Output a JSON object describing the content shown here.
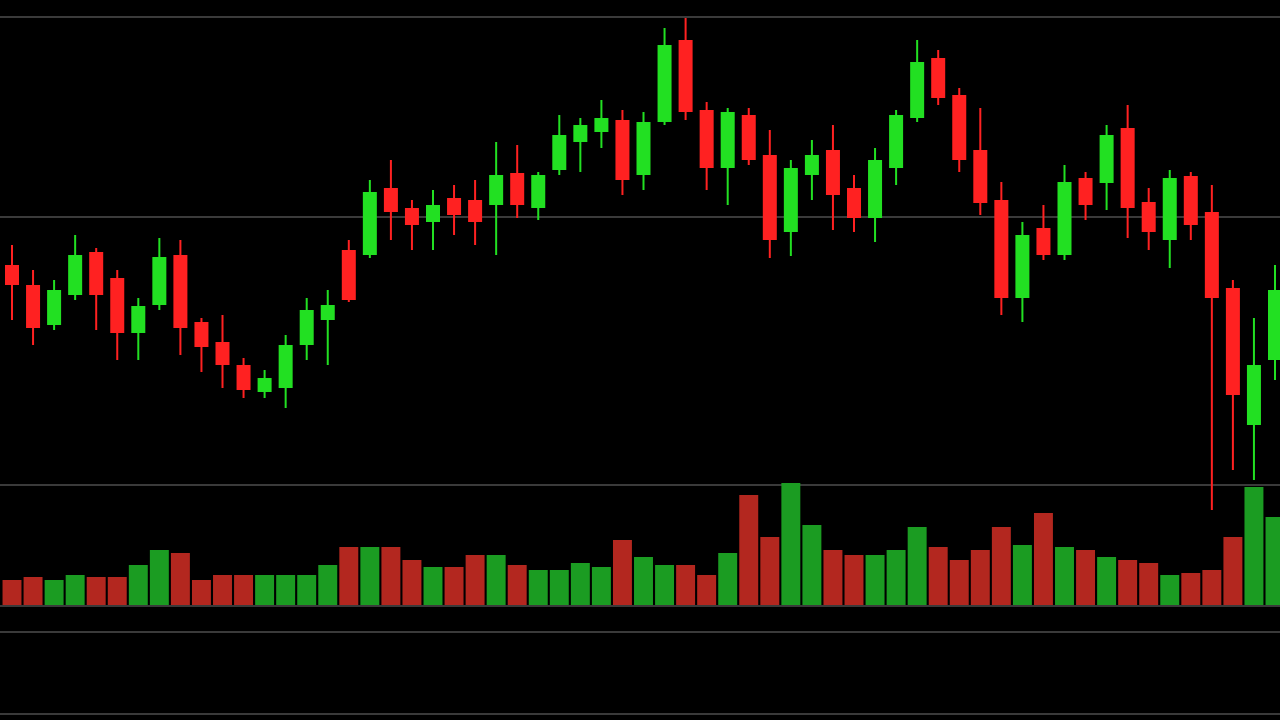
{
  "chart_data": {
    "type": "candlestick",
    "up_color": "#22e022",
    "down_color": "#ff2121",
    "volume_up_color": "#1b9c22",
    "volume_down_color": "#b3271f",
    "ylim": [
      -40,
      460
    ],
    "volume_ylim": [
      0,
      140
    ],
    "open": [
      215,
      195,
      155,
      185,
      228,
      202,
      147,
      175,
      225,
      158,
      138,
      115,
      88,
      92,
      135,
      160,
      230,
      225,
      292,
      272,
      258,
      282,
      280,
      275,
      307,
      272,
      310,
      338,
      348,
      360,
      305,
      358,
      440,
      370,
      312,
      365,
      325,
      248,
      305,
      330,
      292,
      262,
      312,
      362,
      422,
      385,
      330,
      280,
      182,
      252,
      225,
      302,
      297,
      352,
      278,
      240,
      304,
      268,
      192,
      55,
      120
    ],
    "high": [
      235,
      210,
      200,
      245,
      232,
      210,
      182,
      242,
      240,
      162,
      165,
      122,
      110,
      145,
      182,
      190,
      240,
      300,
      320,
      280,
      290,
      295,
      300,
      338,
      335,
      308,
      365,
      362,
      380,
      370,
      368,
      452,
      462,
      378,
      372,
      372,
      350,
      320,
      340,
      355,
      305,
      332,
      370,
      440,
      430,
      392,
      372,
      298,
      258,
      275,
      315,
      308,
      355,
      375,
      292,
      310,
      308,
      295,
      200,
      162,
      215
    ],
    "low": [
      160,
      135,
      150,
      180,
      150,
      120,
      120,
      170,
      125,
      108,
      92,
      82,
      82,
      72,
      120,
      115,
      178,
      222,
      240,
      230,
      230,
      245,
      235,
      225,
      262,
      260,
      305,
      308,
      332,
      285,
      290,
      355,
      360,
      290,
      275,
      315,
      222,
      224,
      280,
      250,
      248,
      238,
      295,
      358,
      375,
      308,
      265,
      165,
      158,
      220,
      220,
      260,
      270,
      242,
      230,
      212,
      240,
      -30,
      10,
      0,
      100
    ],
    "close": [
      195,
      152,
      190,
      225,
      185,
      147,
      174,
      223,
      152,
      133,
      115,
      90,
      102,
      135,
      170,
      175,
      180,
      288,
      268,
      255,
      275,
      265,
      258,
      305,
      275,
      305,
      345,
      355,
      362,
      300,
      358,
      435,
      368,
      312,
      368,
      320,
      240,
      312,
      325,
      285,
      262,
      320,
      365,
      418,
      382,
      320,
      277,
      182,
      245,
      225,
      298,
      275,
      345,
      272,
      248,
      302,
      255,
      182,
      85,
      115,
      190
    ],
    "volume": [
      25,
      28,
      25,
      30,
      28,
      28,
      40,
      55,
      52,
      25,
      30,
      30,
      30,
      30,
      30,
      40,
      58,
      58,
      58,
      45,
      38,
      38,
      50,
      50,
      40,
      35,
      35,
      42,
      38,
      65,
      48,
      40,
      40,
      30,
      52,
      110,
      68,
      122,
      80,
      55,
      50,
      50,
      55,
      78,
      58,
      45,
      55,
      78,
      60,
      92,
      58,
      55,
      48,
      45,
      42,
      30,
      32,
      35,
      68,
      118,
      88
    ]
  }
}
